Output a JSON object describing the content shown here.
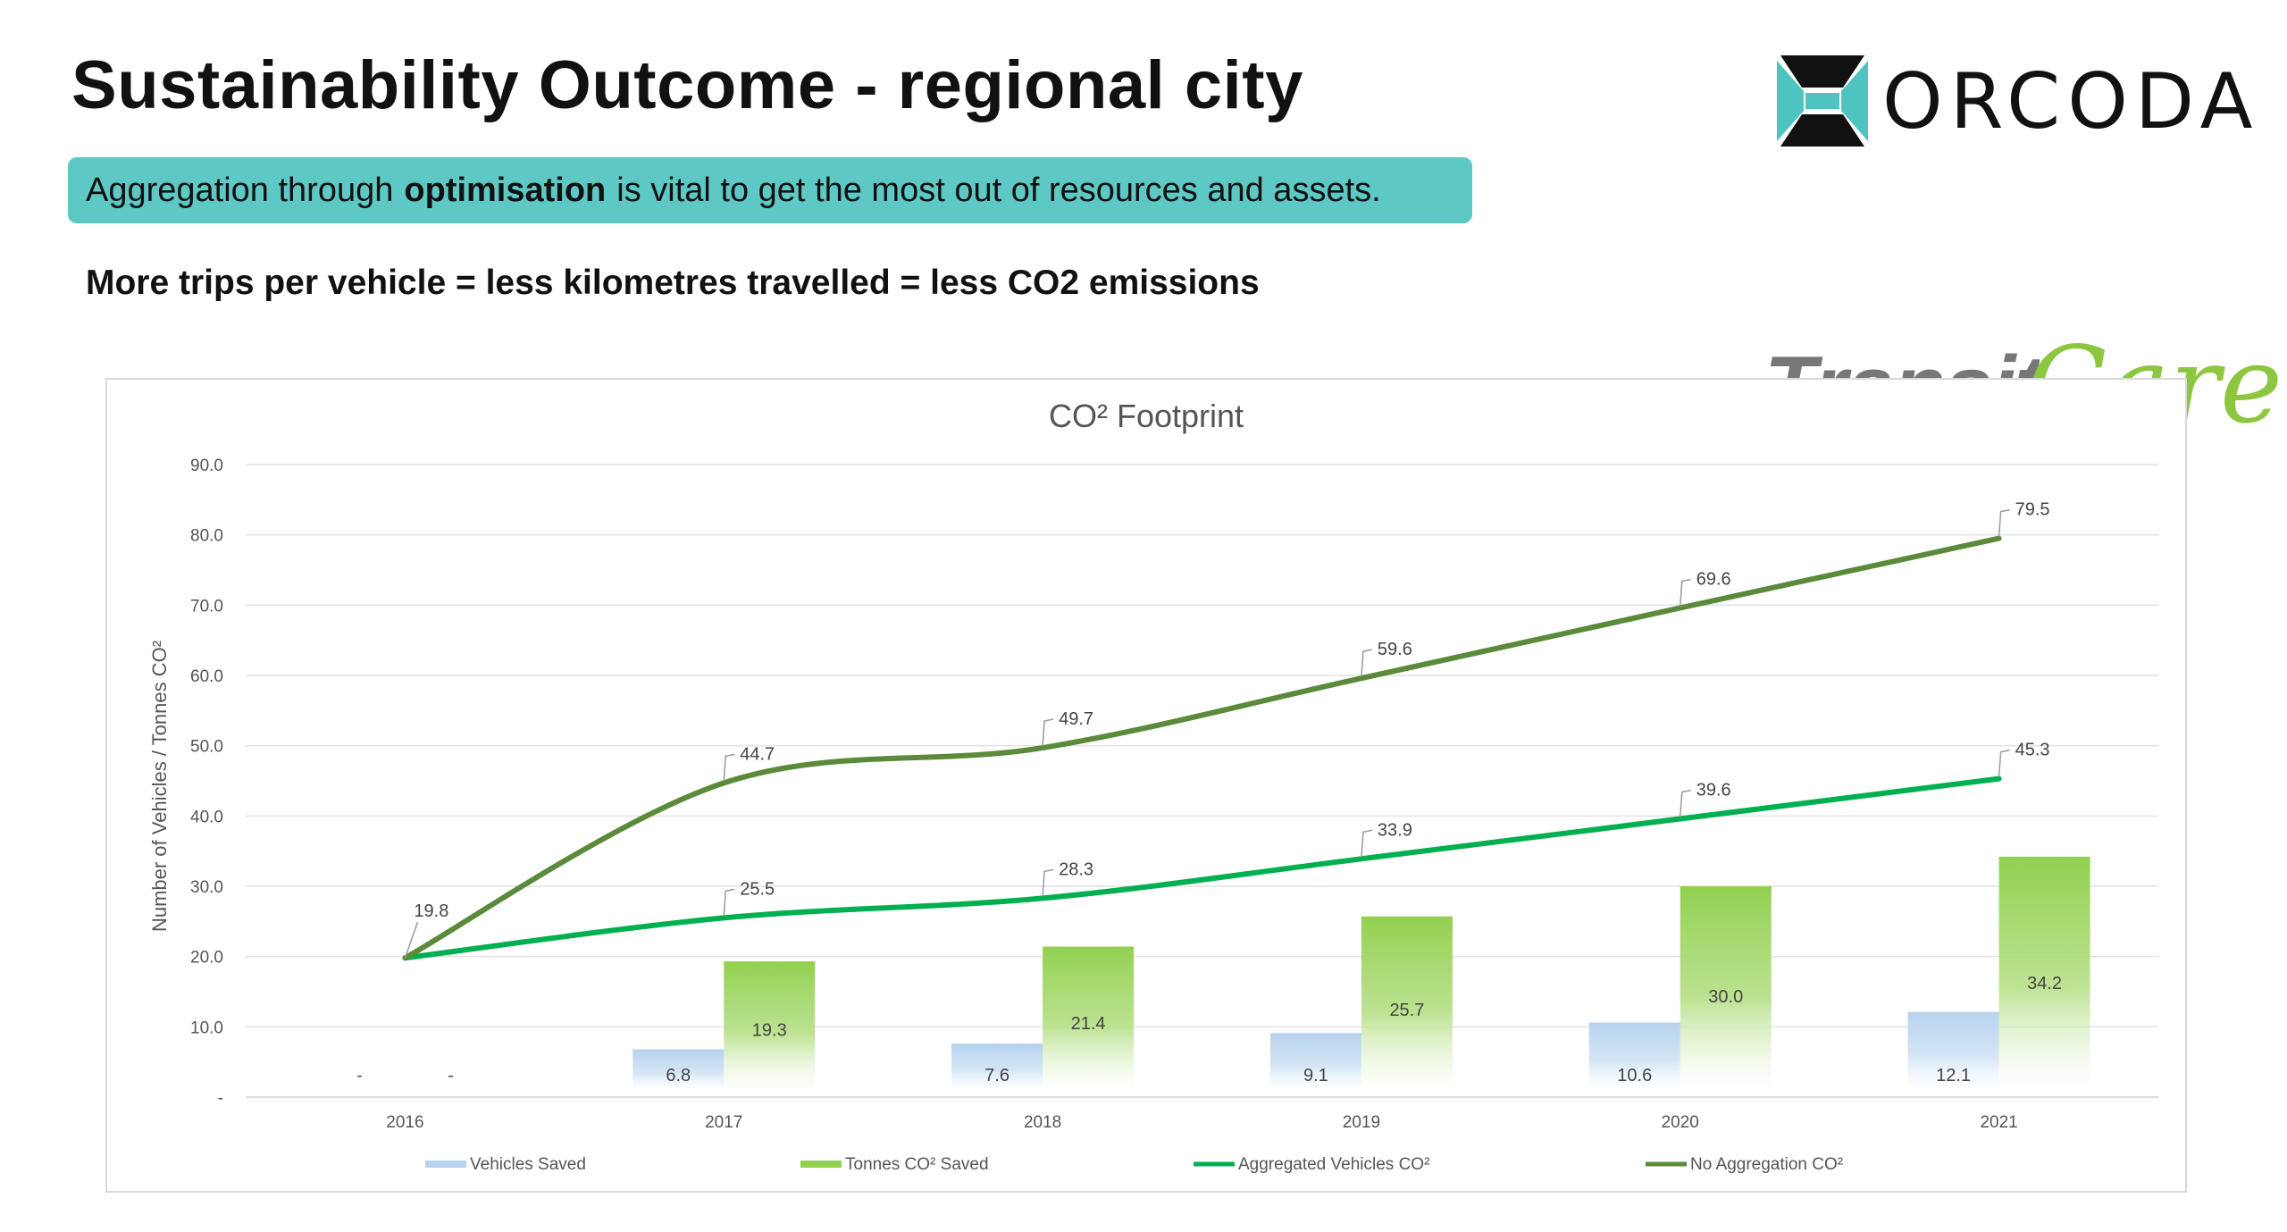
{
  "slide": {
    "title": "Sustainability Outcome - regional city",
    "banner_pre": "Aggregation through",
    "banner_bold": "optimisation",
    "banner_post": "is vital to get the most out of resources and assets.",
    "equation": "More trips per vehicle = less kilometres travelled = less CO2 emissions"
  },
  "logos": {
    "orcoda": "ORCODA",
    "transit": "Transit",
    "care": "Care"
  },
  "colors": {
    "banner": "#5ec8c4",
    "vehicles_saved": "#b7d3ee",
    "tonnes_saved": "#92d050",
    "aggregated": "#00b050",
    "no_aggregation": "#5a8a3a"
  },
  "chart_data": {
    "type": "bar",
    "title": "CO² Footprint",
    "ylabel": "Number of Vehicles / Tonnes CO²",
    "xlabel": "",
    "categories": [
      "2016",
      "2017",
      "2018",
      "2019",
      "2020",
      "2021"
    ],
    "ylim": [
      0,
      90
    ],
    "yticks": [
      "-",
      "10.0",
      "20.0",
      "30.0",
      "40.0",
      "50.0",
      "60.0",
      "70.0",
      "80.0",
      "90.0"
    ],
    "grid": true,
    "legend_position": "bottom",
    "series": [
      {
        "name": "Vehicles Saved",
        "kind": "bar",
        "values": [
          0,
          6.8,
          7.6,
          9.1,
          10.6,
          12.1
        ],
        "labels": [
          "-",
          "6.8",
          "7.6",
          "9.1",
          "10.6",
          "12.1"
        ]
      },
      {
        "name": "Tonnes CO² Saved",
        "kind": "bar",
        "values": [
          0,
          19.3,
          21.4,
          25.7,
          30.0,
          34.2
        ],
        "labels": [
          "-",
          "19.3",
          "21.4",
          "25.7",
          "30.0",
          "34.2"
        ]
      },
      {
        "name": "Aggregated Vehicles CO²",
        "kind": "line",
        "values": [
          19.8,
          25.5,
          28.3,
          33.9,
          39.6,
          45.3
        ],
        "labels": [
          "19.8",
          "25.5",
          "28.3",
          "33.9",
          "39.6",
          "45.3"
        ]
      },
      {
        "name": "No Aggregation CO²",
        "kind": "line",
        "values": [
          19.8,
          44.7,
          49.7,
          59.6,
          69.6,
          79.5
        ],
        "labels": [
          "19.8",
          "44.7",
          "49.7",
          "59.6",
          "69.6",
          "79.5"
        ]
      }
    ]
  }
}
